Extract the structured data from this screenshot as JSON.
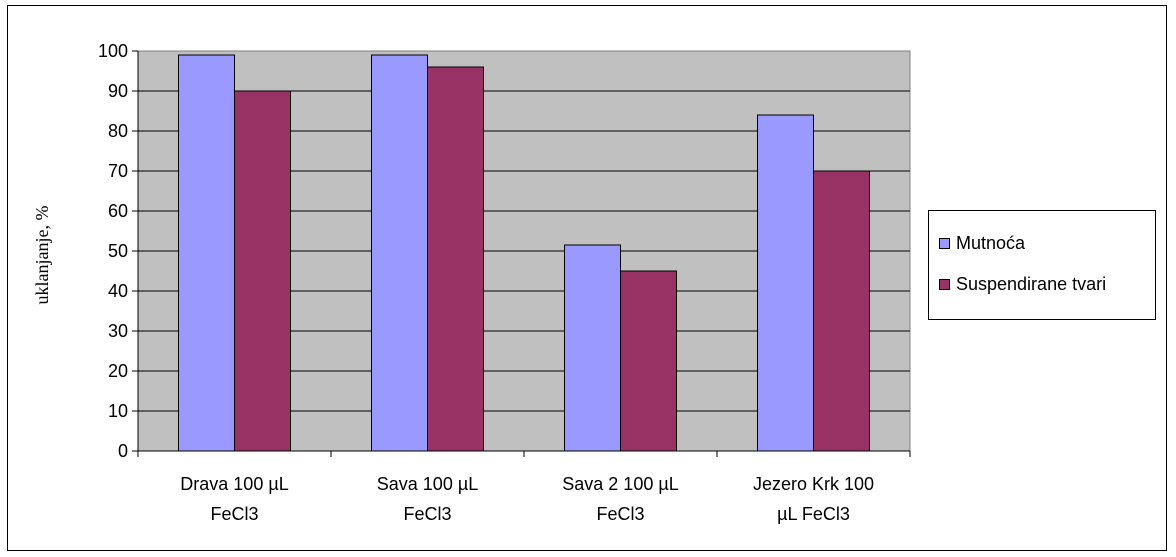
{
  "chart_data": {
    "type": "bar",
    "categories": [
      [
        "Drava 100 µL",
        "FeCl3"
      ],
      [
        "Sava 100 µL",
        "FeCl3"
      ],
      [
        "Sava 2 100 µL",
        "FeCl3"
      ],
      [
        "Jezero Krk 100",
        "µL FeCl3"
      ]
    ],
    "series": [
      {
        "name": "Mutnoća",
        "color": "#9999ff",
        "values": [
          99,
          99,
          51.5,
          84
        ]
      },
      {
        "name": "Suspendirane tvari",
        "color": "#993366",
        "values": [
          90,
          96,
          45,
          70
        ]
      }
    ],
    "ylabel": "uklanjanje, %",
    "ylim": [
      0,
      100
    ],
    "yticks": [
      "0",
      "10",
      "20",
      "30",
      "40",
      "50",
      "60",
      "70",
      "80",
      "90",
      "100"
    ],
    "grid": true,
    "plot_background": "#c0c0c0",
    "legend_position": "right"
  }
}
